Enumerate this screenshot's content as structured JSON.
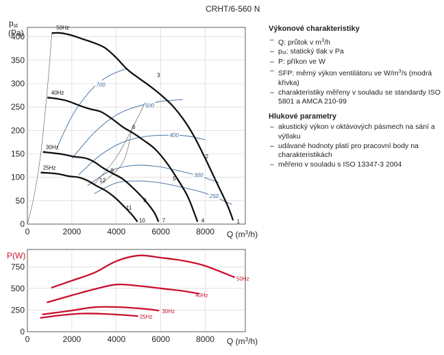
{
  "model": "CRHT/6-560 N",
  "legend": {
    "performance_title": "Výkonové charakteristiky",
    "performance_items": [
      [
        "Q: průtok v m",
        "3",
        "/h"
      ],
      [
        "p",
        "st",
        ": statický tlak v Pa"
      ],
      [
        "P: příkon ve W"
      ],
      [
        "SFP: měrný výkon ventilátoru ve W/m",
        "3",
        "/s (modrá křivka)"
      ],
      [
        "charakteristiky měřeny v souladu se standardy ISO 5801 a AMCA 210-99"
      ]
    ],
    "noise_title": "Hlukové parametry",
    "noise_items": [
      "akustický výkon v oktávových pásmech na sání a výtlaku",
      "udávané hodnoty platí pro pracovní body na charakteristikách",
      "měřeno v souladu s ISO 13347-3 2004"
    ]
  },
  "chart_data": [
    {
      "type": "line",
      "xlabel_main": "Q (m",
      "xlabel_sup": "3",
      "xlabel_tail": "/h)",
      "ylabel_main": "p",
      "ylabel_sub": "st",
      "ylabel_unit": "(Pa)",
      "xlim": [
        0,
        9800
      ],
      "ylim": [
        0,
        420
      ],
      "xticks": [
        0,
        2000,
        4000,
        6000,
        8000
      ],
      "yticks": [
        0,
        50,
        100,
        150,
        200,
        250,
        300,
        350,
        400
      ],
      "xtick_labels": [
        "0",
        "2000",
        "4000",
        "6000",
        "8000"
      ],
      "ytick_labels": [
        "0",
        "50",
        "100",
        "150",
        "200",
        "250",
        "300",
        "350",
        "400"
      ],
      "colors": {
        "speed": "#111111",
        "sfp": "#3a6a9a",
        "boundary": "#555555"
      },
      "speed_curves": [
        {
          "name": "50Hz",
          "points": [
            [
              1100,
              408
            ],
            [
              1500,
              408
            ],
            [
              2000,
              403
            ],
            [
              2500,
              395
            ],
            [
              3000,
              387
            ],
            [
              3500,
              376
            ],
            [
              4000,
              355
            ],
            [
              4500,
              330
            ],
            [
              5000,
              312
            ],
            [
              5500,
              295
            ],
            [
              6000,
              276
            ],
            [
              6500,
              254
            ],
            [
              7000,
              225
            ],
            [
              7500,
              187
            ],
            [
              8000,
              140
            ],
            [
              8500,
              90
            ],
            [
              9000,
              40
            ],
            [
              9250,
              8
            ]
          ]
        },
        {
          "name": "40Hz",
          "points": [
            [
              900,
              270
            ],
            [
              1300,
              268
            ],
            [
              1800,
              263
            ],
            [
              2300,
              254
            ],
            [
              2800,
              246
            ],
            [
              3300,
              240
            ],
            [
              3800,
              225
            ],
            [
              4300,
              207
            ],
            [
              4700,
              196
            ],
            [
              5200,
              180
            ],
            [
              5700,
              162
            ],
            [
              6200,
              135
            ],
            [
              6700,
              100
            ],
            [
              7200,
              60
            ],
            [
              7550,
              18
            ],
            [
              7650,
              5
            ]
          ]
        },
        {
          "name": "30Hz",
          "points": [
            [
              700,
              154
            ],
            [
              1100,
              152
            ],
            [
              1600,
              149
            ],
            [
              2100,
              144
            ],
            [
              2600,
              141
            ],
            [
              3000,
              133
            ],
            [
              3400,
              120
            ],
            [
              3800,
              109
            ],
            [
              4300,
              96
            ],
            [
              4800,
              75
            ],
            [
              5300,
              50
            ],
            [
              5700,
              25
            ],
            [
              5900,
              5
            ]
          ]
        },
        {
          "name": "25Hz",
          "points": [
            [
              600,
              110
            ],
            [
              1000,
              109
            ],
            [
              1400,
              107
            ],
            [
              1900,
              102
            ],
            [
              2300,
              100
            ],
            [
              2700,
              93
            ],
            [
              3100,
              82
            ],
            [
              3500,
              72
            ],
            [
              3900,
              58
            ],
            [
              4300,
              40
            ],
            [
              4700,
              20
            ],
            [
              4950,
              5
            ]
          ]
        }
      ],
      "speed_labels": [
        {
          "text": "50Hz",
          "x": 1300,
          "y": 411
        },
        {
          "text": "40Hz",
          "x": 1070,
          "y": 272
        },
        {
          "text": "30Hz",
          "x": 830,
          "y": 156
        },
        {
          "text": "25Hz",
          "x": 700,
          "y": 112
        }
      ],
      "sfp_curves": [
        {
          "label": "700",
          "label_at": [
            3300,
            298
          ],
          "points": [
            [
              1300,
              160
            ],
            [
              2000,
              230
            ],
            [
              2800,
              283
            ],
            [
              3600,
              315
            ],
            [
              4500,
              333
            ]
          ]
        },
        {
          "label": "500",
          "label_at": [
            5500,
            253
          ],
          "points": [
            [
              2000,
              140
            ],
            [
              3000,
              195
            ],
            [
              4000,
              233
            ],
            [
              5000,
              252
            ],
            [
              6000,
              262
            ],
            [
              7000,
              266
            ]
          ]
        },
        {
          "label": "400",
          "label_at": [
            6600,
            190
          ],
          "points": [
            [
              2300,
              105
            ],
            [
              3300,
              148
            ],
            [
              4300,
              175
            ],
            [
              5300,
              187
            ],
            [
              6300,
              190
            ],
            [
              7200,
              188
            ],
            [
              8000,
              180
            ]
          ]
        },
        {
          "label": "300",
          "label_at": [
            7700,
            105
          ],
          "points": [
            [
              2700,
              82
            ],
            [
              3700,
              113
            ],
            [
              4700,
              125
            ],
            [
              5700,
              124
            ],
            [
              6700,
              115
            ],
            [
              7700,
              103
            ],
            [
              8600,
              89
            ]
          ]
        },
        {
          "label": "250",
          "label_at": [
            8400,
            60
          ],
          "points": [
            [
              3000,
              65
            ],
            [
              4000,
              88
            ],
            [
              5000,
              92
            ],
            [
              6000,
              88
            ],
            [
              7000,
              78
            ],
            [
              8000,
              66
            ],
            [
              9200,
              42
            ]
          ]
        }
      ],
      "operating_points": [
        {
          "label": "1",
          "x": 9420,
          "y": 6
        },
        {
          "label": "2",
          "x": 8000,
          "y": 145
        },
        {
          "label": "3",
          "x": 5830,
          "y": 318
        },
        {
          "label": "4",
          "x": 7820,
          "y": 8
        },
        {
          "label": "5",
          "x": 6540,
          "y": 97
        },
        {
          "label": "6",
          "x": 4720,
          "y": 208
        },
        {
          "label": "7",
          "x": 6060,
          "y": 8
        },
        {
          "label": "8",
          "x": 5220,
          "y": 51
        },
        {
          "label": "9",
          "x": 3750,
          "y": 115
        },
        {
          "label": "10",
          "x": 5020,
          "y": 8
        },
        {
          "label": "11",
          "x": 4440,
          "y": 35
        },
        {
          "label": "12",
          "x": 3240,
          "y": 94
        }
      ],
      "system_curves": [
        {
          "points": [
            [
              3000,
              85
            ],
            [
              4100,
              150
            ],
            [
              5300,
              260
            ]
          ]
        },
        {
          "points": [
            [
              3300,
              85
            ],
            [
              4300,
              132
            ],
            [
              4720,
              208
            ]
          ]
        }
      ],
      "left_boundary": [
        [
          0,
          0
        ],
        [
          300,
          60
        ],
        [
          600,
          150
        ],
        [
          900,
          290
        ],
        [
          1100,
          408
        ]
      ]
    },
    {
      "type": "line",
      "xlabel_main": "Q (m",
      "xlabel_sup": "3",
      "xlabel_tail": "/h)",
      "ylabel": "P(W)",
      "xlim": [
        0,
        9800
      ],
      "ylim": [
        0,
        950
      ],
      "xticks": [
        0,
        2000,
        4000,
        6000,
        8000
      ],
      "yticks": [
        0,
        250,
        500,
        750
      ],
      "xtick_labels": [
        "0",
        "2000",
        "4000",
        "6000",
        "8000"
      ],
      "ytick_labels": [
        "0",
        "250",
        "500",
        "750"
      ],
      "color": "#c8102e",
      "series": [
        {
          "name": "50Hz",
          "label_at": [
            9400,
            590
          ],
          "points": [
            [
              1100,
              510
            ],
            [
              2000,
              590
            ],
            [
              3000,
              680
            ],
            [
              4000,
              815
            ],
            [
              5000,
              880
            ],
            [
              6000,
              855
            ],
            [
              7000,
              820
            ],
            [
              8000,
              760
            ],
            [
              9300,
              630
            ]
          ]
        },
        {
          "name": "40Hz",
          "label_at": [
            7550,
            400
          ],
          "points": [
            [
              900,
              340
            ],
            [
              2000,
              420
            ],
            [
              3000,
              490
            ],
            [
              4000,
              545
            ],
            [
              5000,
              530
            ],
            [
              6000,
              500
            ],
            [
              7000,
              470
            ],
            [
              7700,
              440
            ]
          ]
        },
        {
          "name": "30Hz",
          "label_at": [
            6050,
            215
          ],
          "points": [
            [
              700,
              200
            ],
            [
              2000,
              245
            ],
            [
              3000,
              283
            ],
            [
              4000,
              285
            ],
            [
              5000,
              270
            ],
            [
              5900,
              245
            ]
          ]
        },
        {
          "name": "25Hz",
          "label_at": [
            5050,
            150
          ],
          "points": [
            [
              600,
              160
            ],
            [
              1500,
              190
            ],
            [
              2500,
              210
            ],
            [
              3500,
              205
            ],
            [
              4500,
              190
            ],
            [
              4950,
              180
            ]
          ]
        }
      ]
    }
  ]
}
